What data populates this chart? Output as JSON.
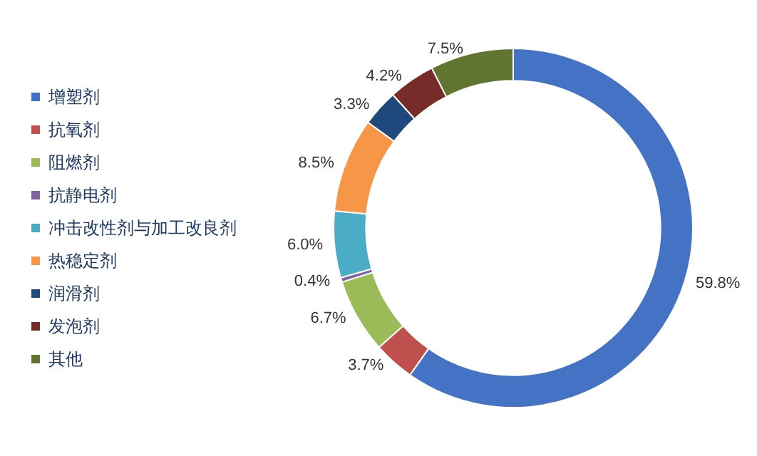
{
  "chart_data": {
    "type": "donut",
    "categories": [
      "增塑剂",
      "抗氧剂",
      "阻燃剂",
      "抗静电剂",
      "冲击改性剂与加工改良剂",
      "热稳定剂",
      "润滑剂",
      "发泡剂",
      "其他"
    ],
    "values": [
      59.8,
      3.7,
      6.7,
      0.4,
      6.0,
      8.5,
      3.3,
      4.2,
      7.5
    ],
    "value_labels": [
      "59.8%",
      "3.7%",
      "6.7%",
      "0.4%",
      "6.0%",
      "8.5%",
      "3.3%",
      "4.2%",
      "7.5%"
    ],
    "colors": [
      "#4472c4",
      "#c0504d",
      "#9bbb59",
      "#8064a2",
      "#4bacc6",
      "#f79646",
      "#1f497d",
      "#772c2a",
      "#5f7530"
    ],
    "legend": "left"
  }
}
